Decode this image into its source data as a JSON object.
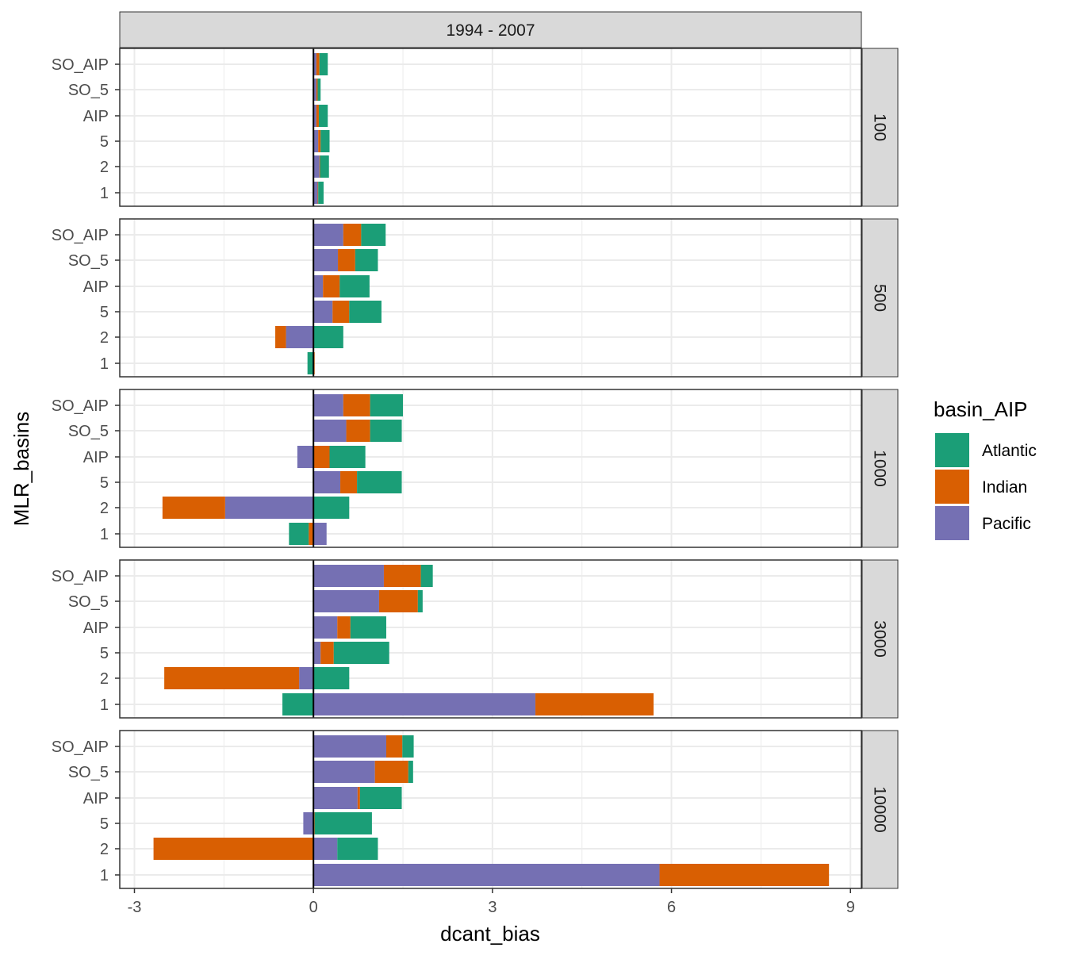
{
  "chart_data": {
    "type": "bar",
    "orientation": "horizontal",
    "stacked": true,
    "facet_column_label": "1994 - 2007",
    "facet_rows": [
      "100",
      "500",
      "1000",
      "3000",
      "10000"
    ],
    "categories": [
      "SO_AIP",
      "SO_5",
      "AIP",
      "5",
      "2",
      "1"
    ],
    "xlabel": "dcant_bias",
    "ylabel": "MLR_basins",
    "xlim": [
      -3.3,
      9.2
    ],
    "xticks": [
      "-3",
      "0",
      "3",
      "6",
      "9"
    ],
    "grid": true,
    "legend": {
      "title": "basin_AIP",
      "position": "right",
      "entries": [
        {
          "name": "Atlantic",
          "color": "#1b9e77"
        },
        {
          "name": "Indian",
          "color": "#d95f02"
        },
        {
          "name": "Pacific",
          "color": "#7570b3"
        }
      ]
    },
    "panels": [
      {
        "facet": "100",
        "values": {
          "SO_AIP": {
            "Pacific": 0.05,
            "Indian": 0.05,
            "Atlantic": 0.14
          },
          "SO_5": {
            "Pacific": 0.05,
            "Indian": 0.02,
            "Atlantic": 0.05
          },
          "AIP": {
            "Pacific": 0.05,
            "Indian": 0.04,
            "Atlantic": 0.15
          },
          "5": {
            "Pacific": 0.08,
            "Indian": 0.04,
            "Atlantic": 0.15
          },
          "2": {
            "Pacific": 0.1,
            "Indian": 0.01,
            "Atlantic": 0.15
          },
          "1": {
            "Pacific": 0.07,
            "Indian": 0.01,
            "Atlantic": 0.09
          }
        }
      },
      {
        "facet": "500",
        "values": {
          "SO_AIP": {
            "Pacific": 0.5,
            "Indian": 0.3,
            "Atlantic": 0.41
          },
          "SO_5": {
            "Pacific": 0.41,
            "Indian": 0.29,
            "Atlantic": 0.38
          },
          "AIP": {
            "Pacific": 0.16,
            "Indian": 0.28,
            "Atlantic": 0.5
          },
          "5": {
            "Pacific": 0.32,
            "Indian": 0.28,
            "Atlantic": 0.54
          },
          "2": {
            "Pacific": -0.46,
            "Indian": -0.18,
            "Atlantic": 0.5
          },
          "1": {
            "Pacific": 0.0,
            "Indian": 0.02,
            "Atlantic": -0.1
          }
        }
      },
      {
        "facet": "1000",
        "values": {
          "SO_AIP": {
            "Pacific": 0.5,
            "Indian": 0.45,
            "Atlantic": 0.55
          },
          "SO_5": {
            "Pacific": 0.55,
            "Indian": 0.4,
            "Atlantic": 0.53
          },
          "AIP": {
            "Pacific": -0.27,
            "Indian": 0.27,
            "Atlantic": 0.6
          },
          "5": {
            "Pacific": 0.45,
            "Indian": 0.28,
            "Atlantic": 0.75
          },
          "2": {
            "Pacific": -1.48,
            "Indian": -1.05,
            "Atlantic": 0.6
          },
          "1": {
            "Pacific": 0.22,
            "Indian": -0.08,
            "Atlantic": -0.33
          }
        }
      },
      {
        "facet": "3000",
        "values": {
          "SO_AIP": {
            "Pacific": 1.18,
            "Indian": 0.62,
            "Atlantic": 0.2
          },
          "SO_5": {
            "Pacific": 1.1,
            "Indian": 0.65,
            "Atlantic": 0.08
          },
          "AIP": {
            "Pacific": 0.4,
            "Indian": 0.22,
            "Atlantic": 0.6
          },
          "5": {
            "Pacific": 0.12,
            "Indian": 0.22,
            "Atlantic": 0.93
          },
          "2": {
            "Pacific": -0.24,
            "Indian": -2.26,
            "Atlantic": 0.6
          },
          "1": {
            "Pacific": 3.72,
            "Indian": 1.98,
            "Atlantic": -0.52
          }
        }
      },
      {
        "facet": "10000",
        "values": {
          "SO_AIP": {
            "Pacific": 1.22,
            "Indian": 0.27,
            "Atlantic": 0.19
          },
          "SO_5": {
            "Pacific": 1.03,
            "Indian": 0.56,
            "Atlantic": 0.08
          },
          "AIP": {
            "Pacific": 0.74,
            "Indian": 0.04,
            "Atlantic": 0.7
          },
          "5": {
            "Pacific": -0.17,
            "Indian": 0.02,
            "Atlantic": 0.96
          },
          "2": {
            "Pacific": 0.4,
            "Indian": -2.68,
            "Atlantic": 0.68
          },
          "1": {
            "Pacific": 5.8,
            "Indian": 2.84,
            "Atlantic": 0.0
          }
        }
      }
    ]
  }
}
